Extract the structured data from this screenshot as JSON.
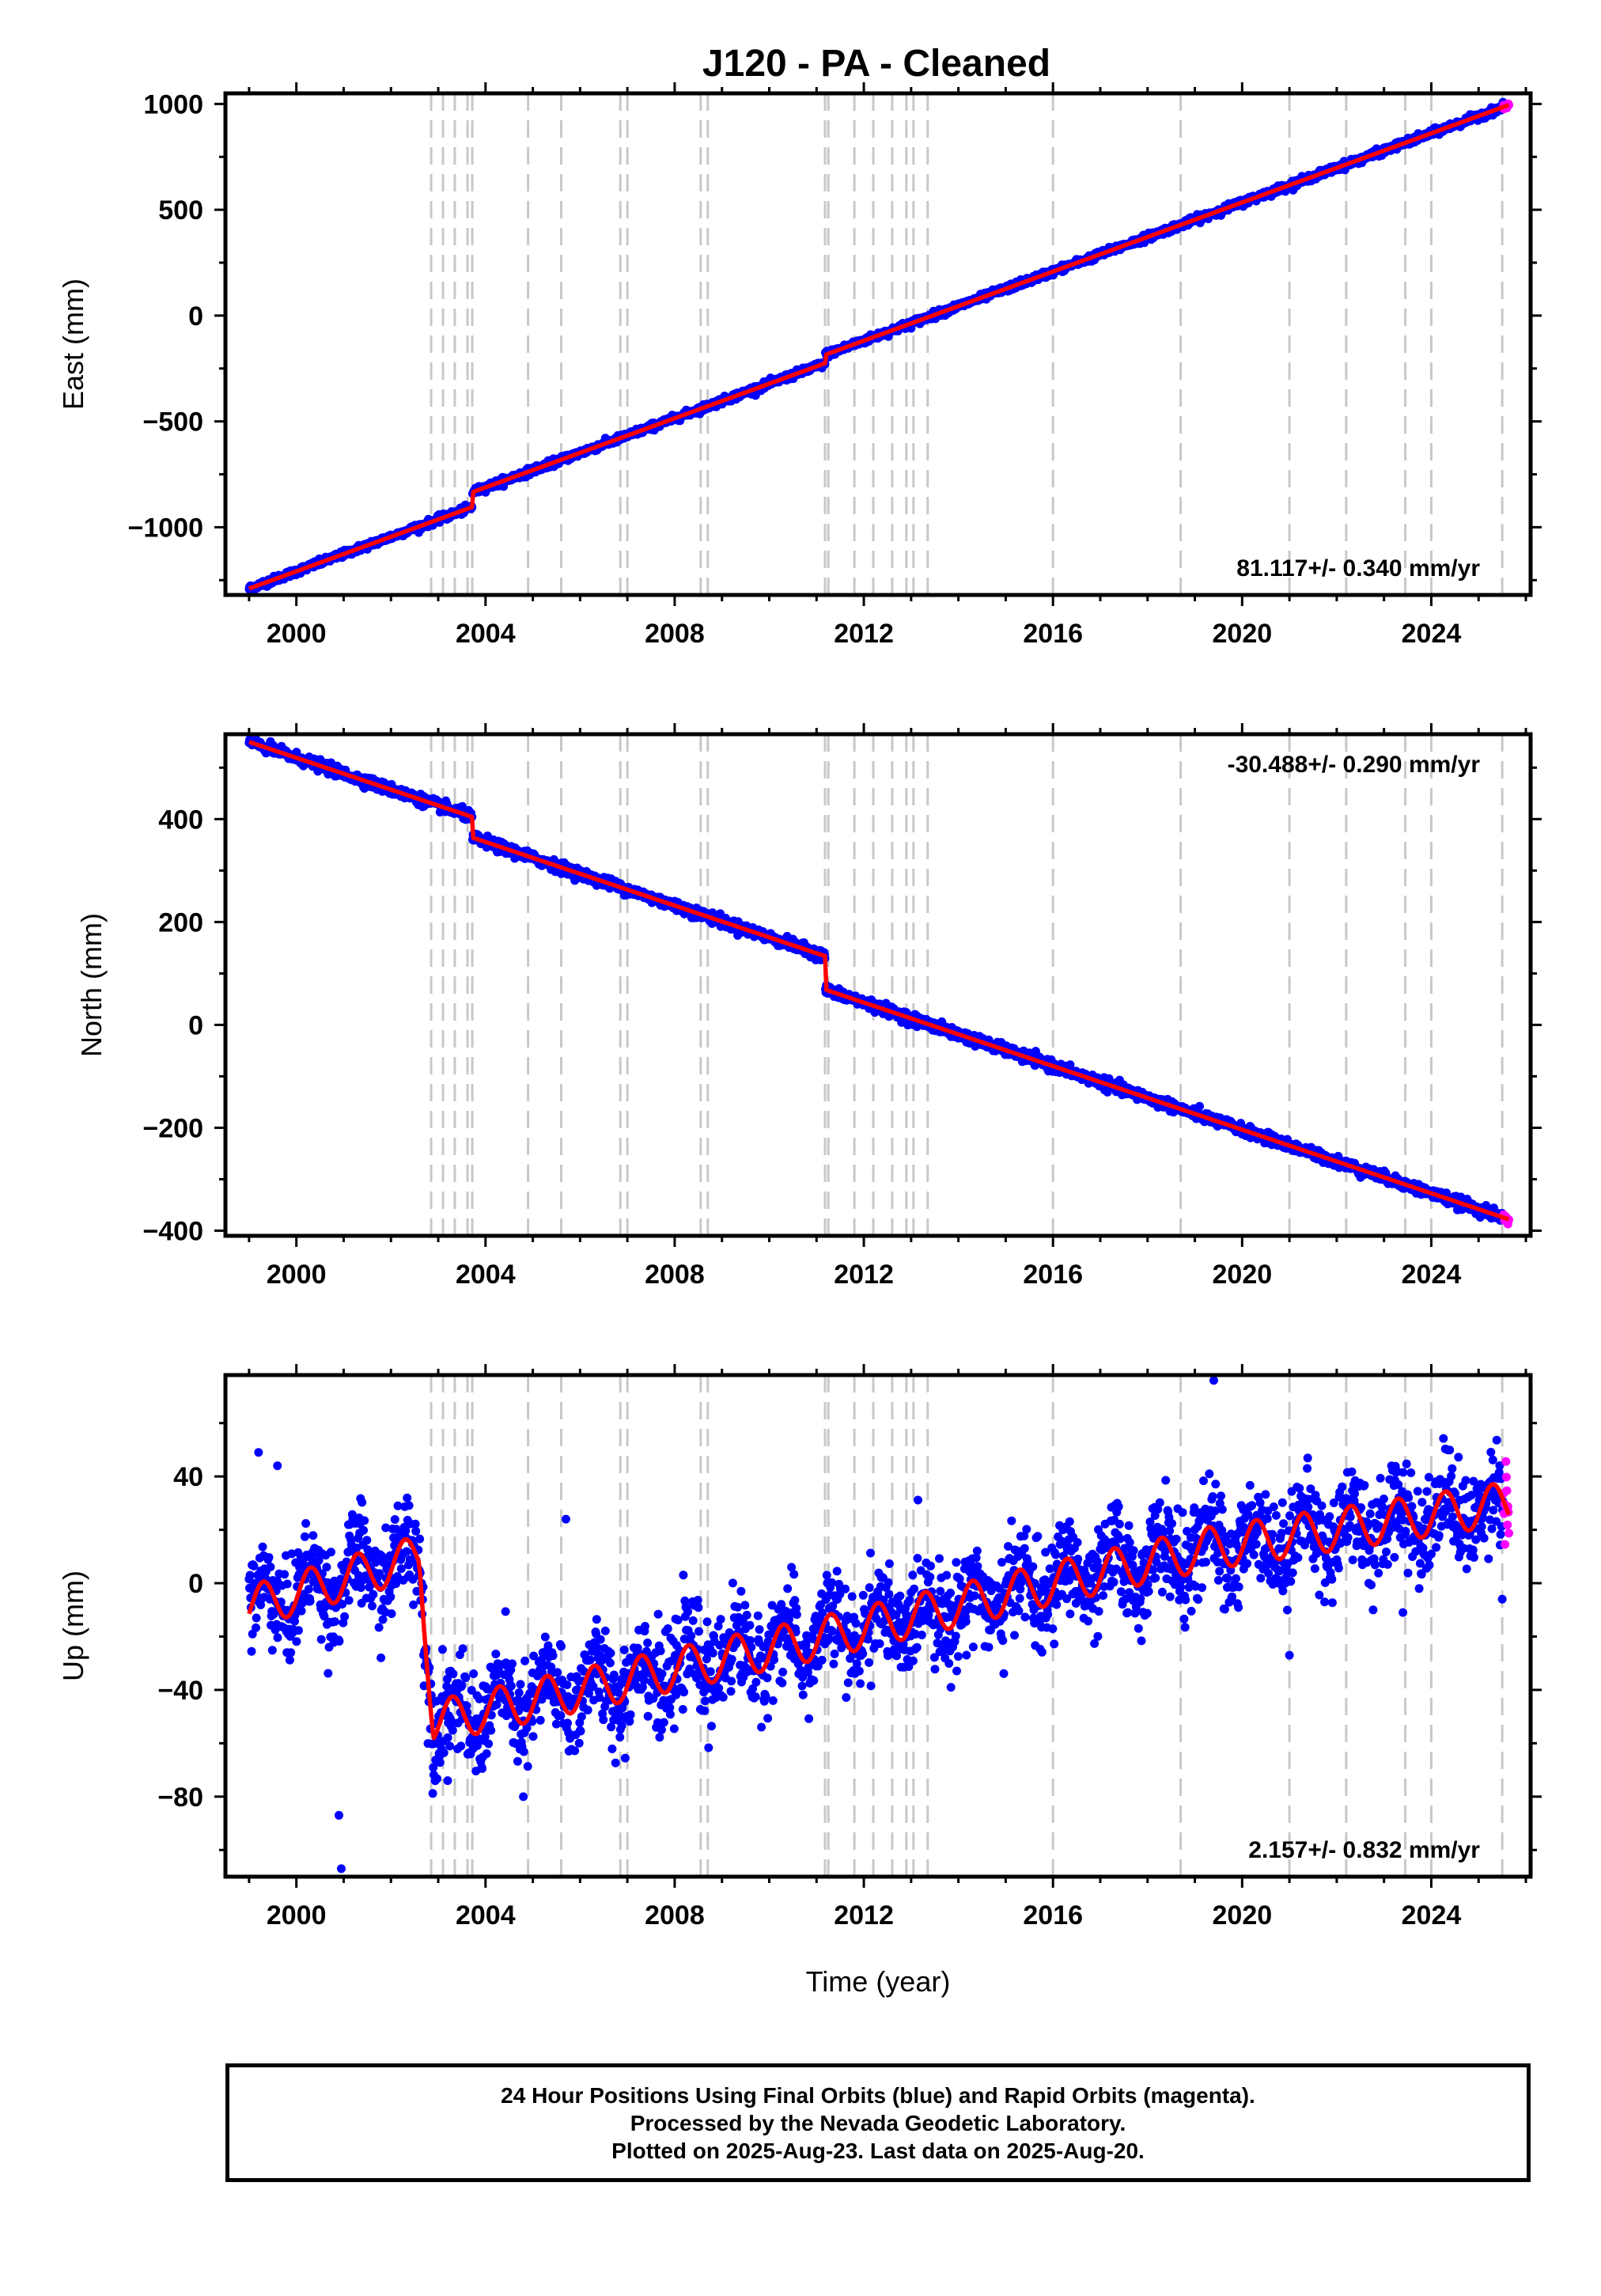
{
  "chart_data": {
    "title": "J120  - PA - Cleaned",
    "type": "scatter",
    "xlabel": "Time (year)",
    "x_ticks": [
      2000,
      2004,
      2008,
      2012,
      2016,
      2020,
      2024
    ],
    "xlim": [
      1998.5,
      2026.1
    ],
    "x_range_data": [
      1999.0,
      2025.64
    ],
    "events": [
      2002.85,
      2003.1,
      2003.35,
      2003.62,
      2003.72,
      2004.9,
      2005.6,
      2006.85,
      2007.0,
      2008.55,
      2008.7,
      2011.18,
      2011.25,
      2011.8,
      2012.2,
      2012.6,
      2012.9,
      2013.05,
      2013.35,
      2016.0,
      2018.7,
      2021.0,
      2022.2,
      2023.45,
      2024.0,
      2025.5
    ],
    "legend": [
      "24 Hour Positions Using Final Orbits (blue) and Rapid Orbits (magenta).",
      "Processed by the Nevada Geodetic Laboratory.",
      "Plotted on 2025-Aug-23. Last data on 2025-Aug-20."
    ],
    "colors": {
      "final_orbits": "#0000ff",
      "rapid_orbits": "#ff00ff",
      "model": "#ff0000",
      "events": "#c8c8c8"
    },
    "panels": [
      {
        "component": "east",
        "ylabel": "East (mm)",
        "ylim": [
          -1320,
          1050
        ],
        "y_ticks": [
          -1000,
          -500,
          0,
          500,
          1000
        ],
        "rate_label": "81.117+/- 0.340 mm/yr",
        "rate_position": "bottom-right",
        "rate_mm_per_yr": 81.117,
        "steps": [
          {
            "year": 2003.72,
            "offset": 70
          },
          {
            "year": 2011.18,
            "offset": 40
          }
        ],
        "start_value": -1290,
        "end_value": 995,
        "noise_mm": 8,
        "annual_amplitude": 0
      },
      {
        "component": "north",
        "ylabel": "North (mm)",
        "ylim": [
          -410,
          565
        ],
        "y_ticks": [
          -400,
          -200,
          0,
          200,
          400
        ],
        "rate_label": "-30.488+/- 0.290 mm/yr",
        "rate_position": "top-right",
        "rate_mm_per_yr": -30.488,
        "steps": [
          {
            "year": 2003.72,
            "offset": -40
          },
          {
            "year": 2011.18,
            "offset": -65
          }
        ],
        "start_value": 550,
        "end_value": -378,
        "noise_mm": 5,
        "annual_amplitude": 0
      },
      {
        "component": "up",
        "ylabel": "Up (mm)",
        "ylim": [
          -110,
          78
        ],
        "y_ticks": [
          -80,
          -40,
          0,
          40
        ],
        "rate_label": "2.157+/- 0.832 mm/yr",
        "rate_position": "bottom-right",
        "rate_mm_per_yr": 2.157,
        "model_knots": [
          [
            1999.0,
            -9
          ],
          [
            2002.6,
            10
          ],
          [
            2002.9,
            -52
          ],
          [
            2011.2,
            -20
          ],
          [
            2016.0,
            0
          ],
          [
            2019.3,
            13
          ],
          [
            2025.64,
            30
          ]
        ],
        "steps": [],
        "noise_mm": 9,
        "annual_amplitude": 8,
        "outliers": [
          [
            1999.2,
            49
          ],
          [
            1999.6,
            44
          ],
          [
            2000.9,
            -87
          ],
          [
            2000.95,
            -107
          ],
          [
            2003.2,
            -74
          ],
          [
            2004.8,
            -80
          ],
          [
            2005.7,
            24
          ],
          [
            2019.4,
            76
          ],
          [
            2025.5,
            -6
          ],
          [
            2021.0,
            -27
          ],
          [
            2023.4,
            -11
          ]
        ]
      }
    ]
  }
}
